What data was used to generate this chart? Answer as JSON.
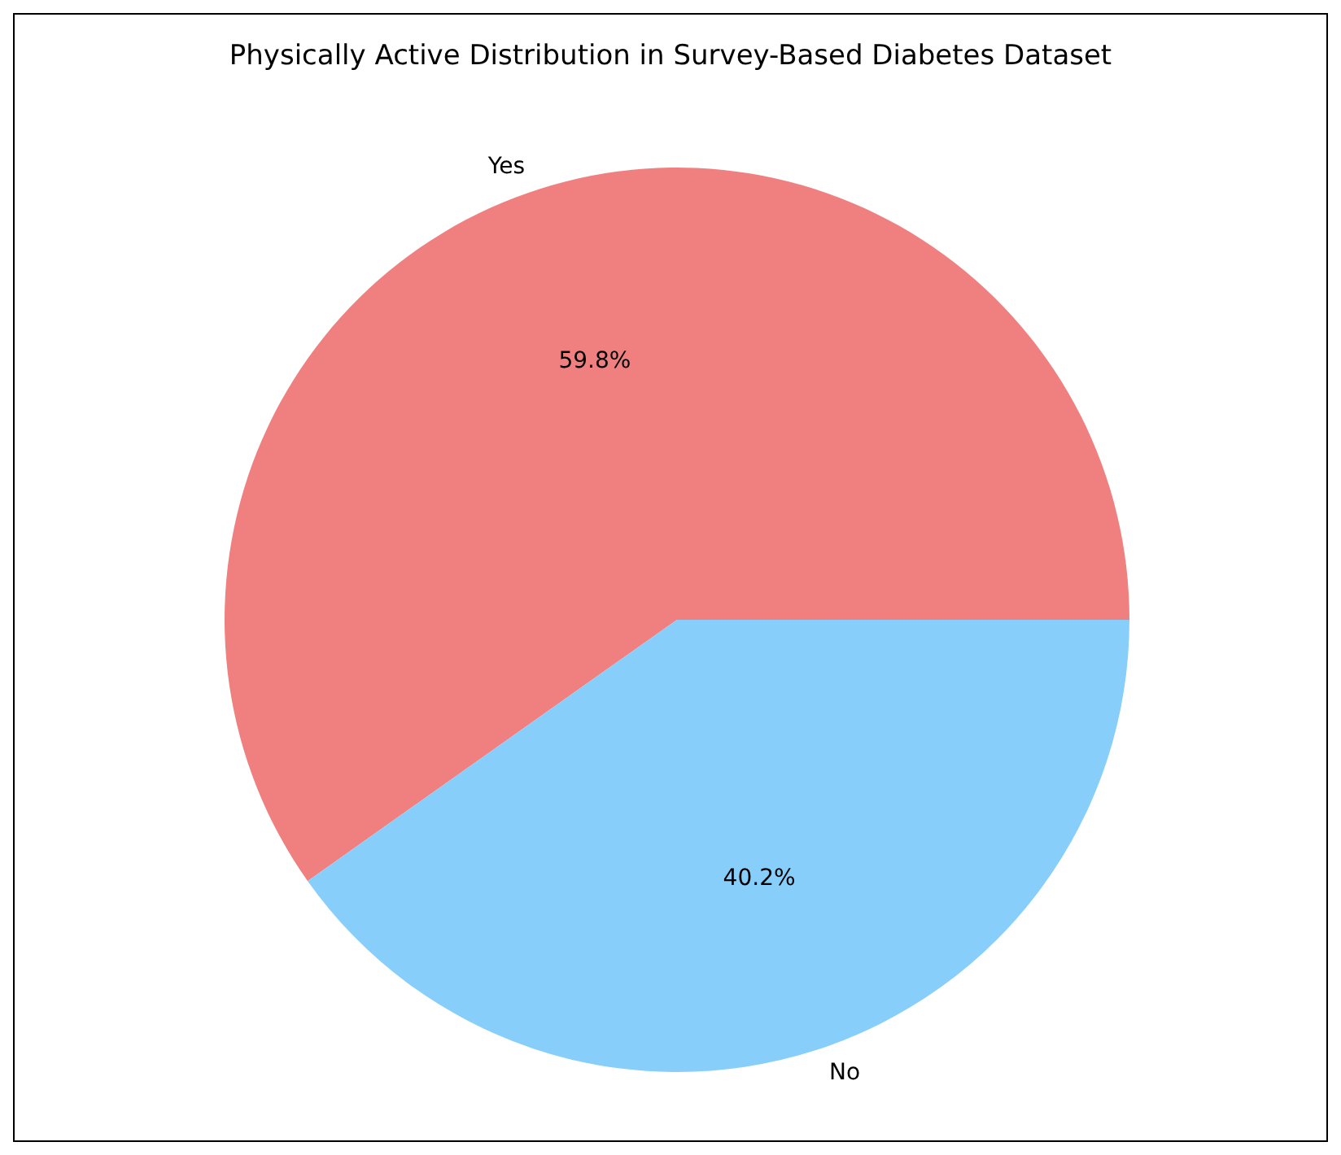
{
  "chart_data": {
    "type": "pie",
    "title": "Physically Active Distribution in Survey-Based Diabetes Dataset",
    "categories": [
      "Yes",
      "No"
    ],
    "values": [
      59.8,
      40.2
    ],
    "colors": [
      "#f08080",
      "#87cefa"
    ],
    "value_labels": [
      "59.8%",
      "40.2%"
    ],
    "legend": false
  }
}
